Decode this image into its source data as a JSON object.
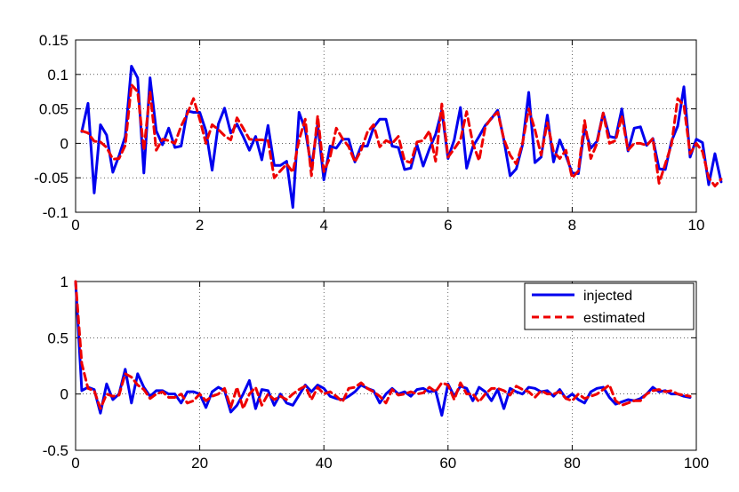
{
  "chart_data": [
    {
      "type": "line",
      "title": "",
      "xlabel": "",
      "ylabel": "",
      "xlim": [
        0,
        10
      ],
      "ylim": [
        -0.1,
        0.15
      ],
      "x_ticks": [
        0,
        2,
        4,
        6,
        8,
        10
      ],
      "y_ticks": [
        -0.1,
        -0.05,
        0,
        0.05,
        0.1,
        0.15
      ],
      "x_tick_labels": [
        "0",
        "2",
        "4",
        "6",
        "8",
        "10"
      ],
      "y_tick_labels": [
        "-0.1",
        "-0.05",
        "0",
        "0.05",
        "0.1",
        "0.15"
      ],
      "grid": true,
      "legend": "none",
      "x_start": 0.1,
      "x_step": 0.1,
      "series": [
        {
          "color": "#0000ee",
          "style": "solid",
          "values": [
            0.017,
            0.058,
            -0.072,
            0.027,
            0.012,
            -0.042,
            -0.018,
            0.01,
            0.112,
            0.095,
            -0.043,
            0.095,
            0.018,
            -0.002,
            0.022,
            -0.006,
            -0.004,
            0.047,
            0.045,
            0.045,
            0.018,
            -0.039,
            0.028,
            0.051,
            0.015,
            0.028,
            0.01,
            -0.01,
            0.01,
            -0.024,
            0.026,
            -0.032,
            -0.032,
            -0.026,
            -0.093,
            0.045,
            0.02,
            -0.036,
            0.028,
            -0.053,
            -0.004,
            -0.007,
            0.006,
            0.006,
            -0.027,
            -0.004,
            -0.004,
            0.023,
            0.035,
            0.035,
            -0.004,
            -0.006,
            -0.038,
            -0.036,
            -0.002,
            -0.033,
            -0.008,
            0.013,
            0.048,
            -0.022,
            0.005,
            0.052,
            -0.036,
            -0.005,
            0.01,
            0.026,
            0.036,
            0.048,
            0.005,
            -0.047,
            -0.037,
            -0.002,
            0.074,
            -0.028,
            -0.02,
            0.041,
            -0.027,
            0.005,
            -0.018,
            -0.043,
            -0.044,
            0.022,
            -0.007,
            0.003,
            0.044,
            0.01,
            0.008,
            0.05,
            -0.011,
            0.022,
            0.024,
            -0.003,
            0.007,
            -0.037,
            -0.038,
            0.003,
            0.025,
            0.082,
            -0.02,
            0.006,
            0.001,
            -0.06,
            -0.015,
            -0.056
          ]
        },
        {
          "color": "#ee0000",
          "style": "dashed",
          "values": [
            0.018,
            0.015,
            0.003,
            0.002,
            -0.006,
            -0.023,
            -0.022,
            -0.003,
            0.085,
            0.075,
            -0.01,
            0.075,
            -0.01,
            0.006,
            0.004,
            0.0,
            0.025,
            0.043,
            0.065,
            0.035,
            0.0,
            0.027,
            0.02,
            0.011,
            0.005,
            0.037,
            0.022,
            0.006,
            0.005,
            0.005,
            0.004,
            -0.05,
            -0.04,
            -0.03,
            -0.042,
            0.005,
            0.035,
            -0.047,
            0.04,
            -0.041,
            -0.02,
            0.022,
            0.007,
            -0.005,
            -0.027,
            -0.01,
            0.016,
            0.027,
            -0.005,
            0.004,
            0.0,
            0.01,
            -0.025,
            -0.028,
            0.002,
            0.004,
            0.018,
            -0.026,
            0.057,
            -0.02,
            -0.008,
            0.005,
            0.046,
            0.0,
            -0.025,
            0.024,
            0.037,
            0.045,
            0.006,
            -0.017,
            -0.03,
            0.0,
            0.05,
            0.02,
            -0.017,
            0.03,
            -0.012,
            -0.022,
            -0.01,
            -0.05,
            -0.04,
            0.033,
            -0.022,
            0.0,
            0.044,
            0.0,
            0.004,
            0.04,
            -0.01,
            0.0,
            0.0,
            -0.003,
            0.007,
            -0.058,
            -0.03,
            -0.002,
            0.065,
            0.055,
            -0.015,
            0.0,
            -0.012,
            -0.05,
            -0.062,
            -0.052
          ]
        }
      ]
    },
    {
      "type": "line",
      "title": "",
      "xlabel": "",
      "ylabel": "",
      "xlim": [
        0,
        100
      ],
      "ylim": [
        -0.5,
        1
      ],
      "x_ticks": [
        0,
        20,
        40,
        60,
        80,
        100
      ],
      "y_ticks": [
        -0.5,
        0,
        0.5,
        1
      ],
      "x_tick_labels": [
        "0",
        "20",
        "40",
        "60",
        "80",
        "100"
      ],
      "y_tick_labels": [
        "-0.5",
        "0",
        "0.5",
        "1"
      ],
      "grid": true,
      "legend": "top-right",
      "x_start": 0,
      "x_step": 1,
      "series": [
        {
          "name": "injected",
          "color": "#0000ee",
          "style": "solid",
          "values": [
            1.0,
            0.03,
            0.06,
            0.04,
            -0.17,
            0.09,
            -0.05,
            0.0,
            0.22,
            -0.08,
            0.18,
            0.06,
            -0.02,
            0.03,
            0.03,
            0.0,
            0.0,
            -0.08,
            0.02,
            0.02,
            0.0,
            -0.12,
            0.02,
            0.06,
            0.03,
            -0.16,
            -0.1,
            0.0,
            0.12,
            -0.13,
            0.04,
            0.03,
            -0.1,
            0.0,
            -0.08,
            -0.1,
            -0.01,
            0.08,
            0.02,
            0.08,
            0.05,
            -0.02,
            -0.04,
            -0.05,
            -0.02,
            0.02,
            0.08,
            0.05,
            0.03,
            -0.08,
            0.0,
            0.05,
            0.0,
            0.02,
            -0.02,
            0.04,
            0.05,
            0.02,
            0.03,
            -0.19,
            0.09,
            -0.02,
            0.07,
            0.05,
            -0.06,
            0.06,
            0.02,
            -0.06,
            0.04,
            -0.13,
            0.05,
            0.02,
            0.0,
            0.06,
            0.05,
            0.02,
            0.03,
            -0.02,
            0.04,
            -0.04,
            0.0,
            -0.05,
            -0.08,
            0.02,
            0.05,
            0.06,
            -0.03,
            -0.09,
            -0.07,
            -0.05,
            -0.06,
            -0.04,
            0.0,
            0.06,
            0.02,
            0.03,
            0.0,
            0.0,
            -0.02,
            -0.03
          ]
        },
        {
          "name": "estimated",
          "color": "#ee0000",
          "style": "dashed",
          "values": [
            1.0,
            0.27,
            0.05,
            0.03,
            -0.13,
            0.0,
            -0.02,
            -0.01,
            0.18,
            0.15,
            0.08,
            0.04,
            -0.04,
            0.0,
            0.02,
            -0.03,
            -0.03,
            0.0,
            -0.08,
            -0.06,
            0.0,
            -0.06,
            -0.02,
            0.0,
            0.05,
            -0.12,
            0.06,
            -0.13,
            0.0,
            0.06,
            -0.1,
            0.0,
            -0.05,
            -0.02,
            -0.05,
            0.0,
            0.04,
            0.07,
            -0.05,
            0.06,
            0.0,
            0.02,
            -0.02,
            -0.07,
            0.05,
            0.06,
            0.1,
            0.05,
            0.02,
            -0.02,
            -0.08,
            0.04,
            -0.01,
            0.0,
            0.02,
            0.0,
            0.01,
            0.06,
            0.02,
            0.1,
            0.08,
            -0.05,
            0.1,
            0.0,
            0.0,
            -0.07,
            0.0,
            0.05,
            0.05,
            0.03,
            -0.01,
            0.07,
            0.04,
            0.02,
            -0.03,
            0.03,
            0.0,
            0.0,
            0.02,
            -0.04,
            -0.06,
            0.0,
            -0.04,
            -0.02,
            0.0,
            0.04,
            0.08,
            -0.06,
            -0.1,
            -0.08,
            -0.06,
            -0.06,
            0.0,
            0.03,
            0.04,
            0.02,
            0.03,
            0.0,
            -0.01,
            -0.02
          ]
        }
      ]
    }
  ]
}
